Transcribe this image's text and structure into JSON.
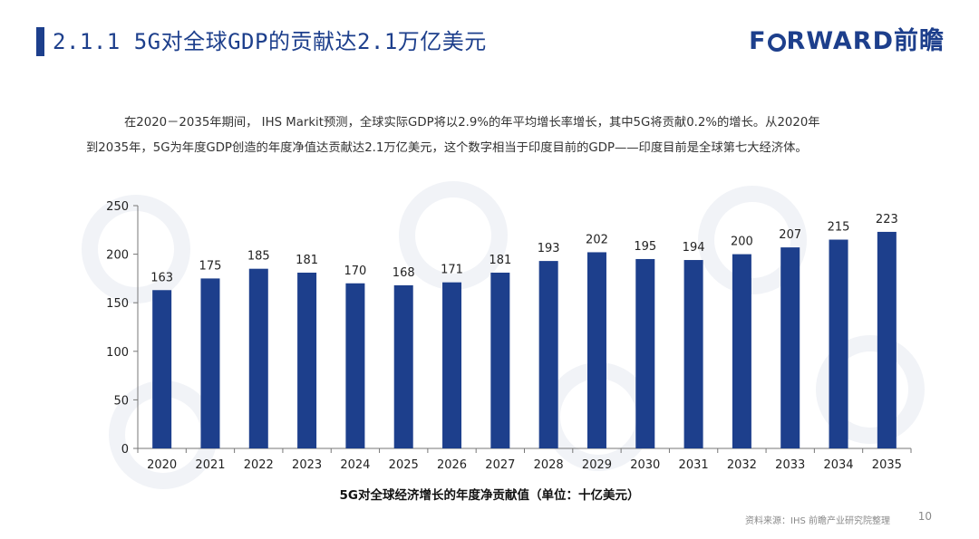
{
  "header": {
    "title": "2.1.1 5G对全球GDP的贡献达2.1万亿美元",
    "logo_text_before": "F",
    "logo_text_after": "RWARD前瞻",
    "logo_icon": "circle-o-icon"
  },
  "description": {
    "line1": "在2020－2035年期间， IHS Markit预测，全球实际GDP将以2.9%的年平均增长率增长，其中5G将贡献0.2%的增长。从2020年",
    "line2": "到2035年，5G为年度GDP创造的年度净值达贡献达2.1万亿美元，这个数字相当于印度目前的GDP——印度目前是全球第七大经济体。"
  },
  "chart_data": {
    "type": "bar",
    "categories": [
      "2020",
      "2021",
      "2022",
      "2023",
      "2024",
      "2025",
      "2026",
      "2027",
      "2028",
      "2029",
      "2030",
      "2031",
      "2032",
      "2033",
      "2034",
      "2035"
    ],
    "values": [
      163,
      175,
      185,
      181,
      170,
      168,
      171,
      181,
      193,
      202,
      195,
      194,
      200,
      207,
      215,
      223
    ],
    "title": "",
    "xlabel": "5G对全球经济增长的年度净贡献值（单位：十亿美元）",
    "ylabel": "",
    "ylim": [
      0,
      250
    ],
    "yticks": [
      0,
      50,
      100,
      150,
      200,
      250
    ],
    "grid": false,
    "data_labels": true,
    "bar_color": "#1d3f8c"
  },
  "footer": {
    "source": "资料来源：IHS 前瞻产业研究院整理",
    "page_number": "10"
  },
  "colors": {
    "accent": "#1d3f8c",
    "muted": "#8a8a8a"
  }
}
